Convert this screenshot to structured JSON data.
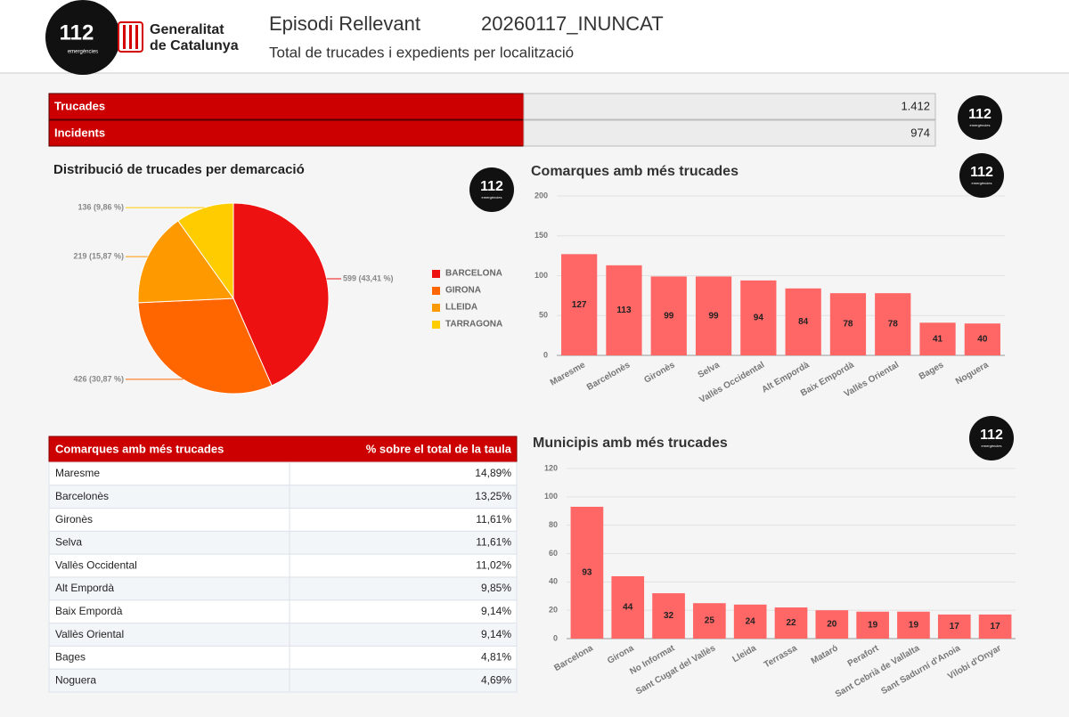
{
  "header": {
    "logo": "112",
    "logo_sub": "emergències",
    "gen_line1": "Generalitat",
    "gen_line2": "de Catalunya",
    "title": "Episodi Rellevant",
    "code": "20260117_INUNCAT",
    "subtitle": "Total de trucades i expedients per localització"
  },
  "summary": {
    "rows": [
      [
        "Trucades",
        "1.412"
      ],
      [
        "Incidents",
        "974"
      ]
    ]
  },
  "chart_data": [
    {
      "type": "pie",
      "title": "Distribució de trucades per demarcació",
      "categories": [
        "BARCELONA",
        "GIRONA",
        "LLEIDA",
        "TARRAGONA"
      ],
      "values": [
        599,
        426,
        219,
        136
      ],
      "value_labels": [
        "599 (43,41 %)",
        "426 (30,87 %)",
        "219 (15,87 %)",
        "136 (9,86 %)"
      ],
      "colors": [
        "#ee1111",
        "#ff6600",
        "#ff9900",
        "#ffcc00"
      ]
    },
    {
      "type": "bar",
      "title": "Comarques amb més trucades",
      "categories": [
        "Maresme",
        "Barcelonès",
        "Gironès",
        "Selva",
        "Vallès Occidental",
        "Alt Empordà",
        "Baix Empordà",
        "Vallès Oriental",
        "Bages",
        "Noguera"
      ],
      "values": [
        127,
        113,
        99,
        99,
        94,
        84,
        78,
        78,
        41,
        40
      ],
      "color": "#ff6666",
      "ylim": [
        0,
        200
      ],
      "yticks": [
        0,
        50,
        100,
        150,
        200
      ],
      "grid": true
    },
    {
      "type": "bar",
      "title": "Municipis amb més trucades",
      "categories": [
        "Barcelona",
        "Girona",
        "No Informat",
        "Sant Cugat del Vallès",
        "Lleida",
        "Terrassa",
        "Mataró",
        "Perafort",
        "Sant Cebrià de Vallalta",
        "Sant Sadurní d'Anoia",
        "Vilobí d'Onyar"
      ],
      "values": [
        93,
        44,
        32,
        25,
        24,
        22,
        20,
        19,
        19,
        17,
        17
      ],
      "color": "#ff6666",
      "ylim": [
        0,
        120
      ],
      "yticks": [
        0,
        20,
        40,
        60,
        80,
        100,
        120
      ],
      "grid": true
    }
  ],
  "table": {
    "headers": [
      "Comarques amb més trucades",
      "% sobre el total de la taula"
    ],
    "rows": [
      [
        "Maresme",
        "14,89%"
      ],
      [
        "Barcelonès",
        "13,25%"
      ],
      [
        "Gironès",
        "11,61%"
      ],
      [
        "Selva",
        "11,61%"
      ],
      [
        "Vallès Occidental",
        "11,02%"
      ],
      [
        "Alt Empordà",
        "9,85%"
      ],
      [
        "Baix Empordà",
        "9,14%"
      ],
      [
        "Vallès Oriental",
        "9,14%"
      ],
      [
        "Bages",
        "4,81%"
      ],
      [
        "Noguera",
        "4,69%"
      ]
    ]
  }
}
